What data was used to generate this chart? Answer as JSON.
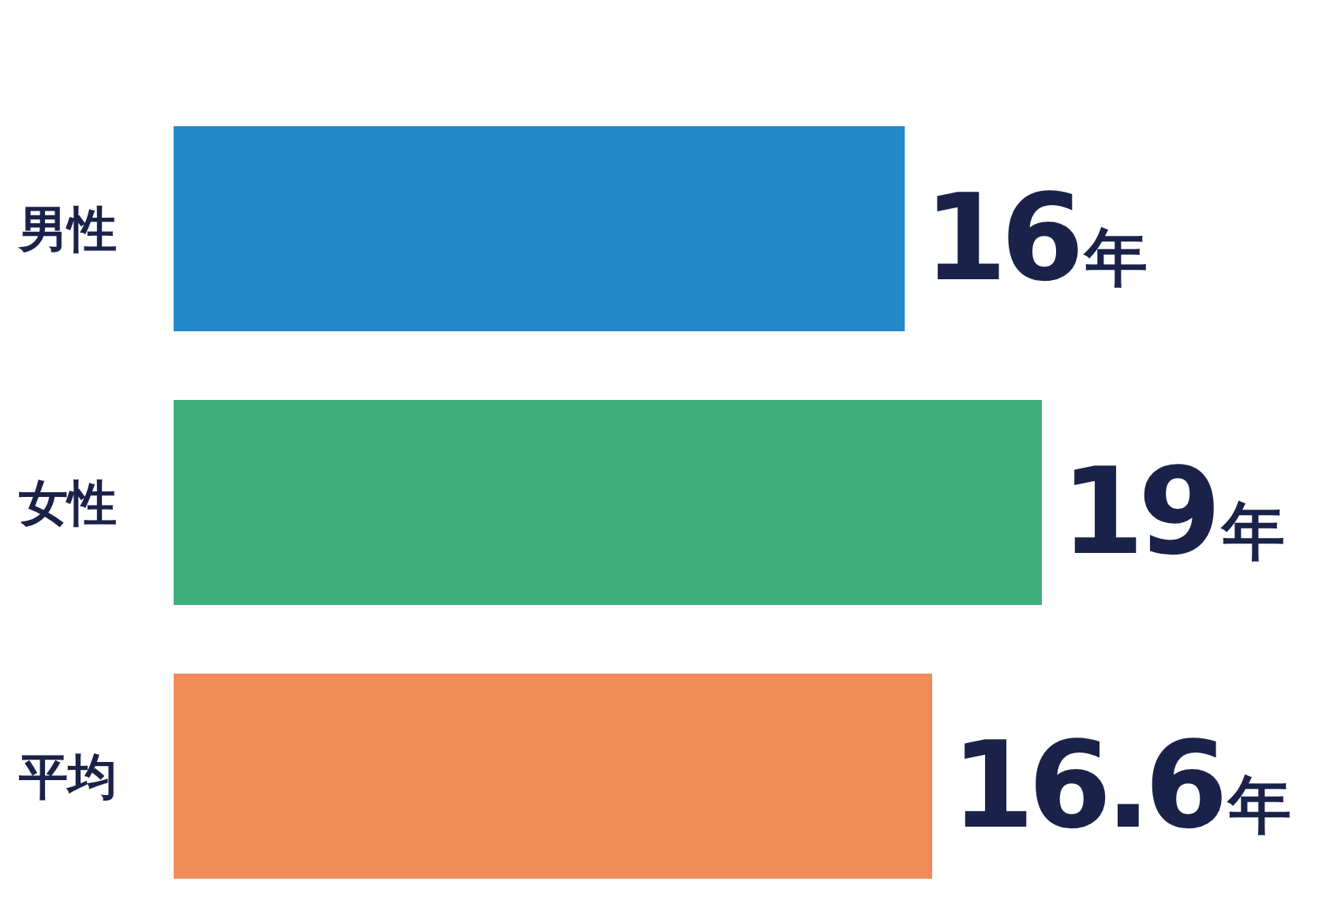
{
  "chart_data": {
    "type": "bar",
    "orientation": "horizontal",
    "categories": [
      "男性",
      "女性",
      "平均"
    ],
    "values": [
      16,
      19,
      16.6
    ],
    "colors": [
      "#2389c8",
      "#40ad7b",
      "#ef8c58"
    ],
    "value_labels": [
      "16年",
      "19年",
      "16.6年"
    ]
  }
}
